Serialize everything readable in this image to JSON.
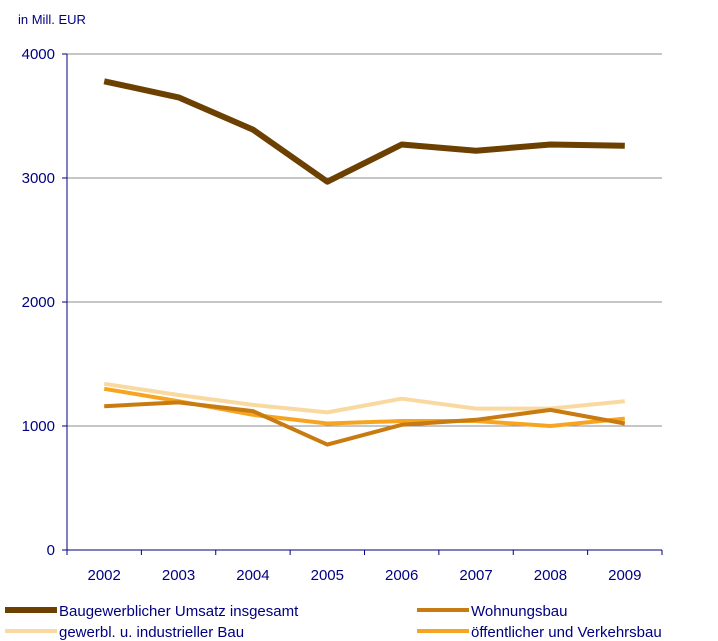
{
  "chart_data": {
    "type": "line",
    "unit_label": "in Mill.  EUR",
    "x": [
      "2002",
      "2003",
      "2004",
      "2005",
      "2006",
      "2007",
      "2008",
      "2009"
    ],
    "y_ticks": [
      "0",
      "1000",
      "2000",
      "3000",
      "4000"
    ],
    "ylim": [
      0,
      4000
    ],
    "grid": "horizontal",
    "legend_position": "bottom",
    "series": [
      {
        "name": "Baugewerblicher Umsatz insgesamt",
        "color": "#6B4000",
        "values": [
          3780,
          3650,
          3390,
          2970,
          3270,
          3220,
          3270,
          3260
        ]
      },
      {
        "name": "Wohnungsbau",
        "color": "#C87B10",
        "values": [
          1160,
          1190,
          1120,
          850,
          1010,
          1050,
          1130,
          1020
        ]
      },
      {
        "name": "gewerbl. u. industrieller  Bau",
        "color": "#FAD9A0",
        "values": [
          1340,
          1250,
          1170,
          1110,
          1220,
          1140,
          1140,
          1200
        ]
      },
      {
        "name": "öffentlicher und Verkehrsbau",
        "color": "#F7A521",
        "values": [
          1300,
          1200,
          1090,
          1020,
          1040,
          1040,
          1000,
          1060
        ]
      }
    ]
  }
}
